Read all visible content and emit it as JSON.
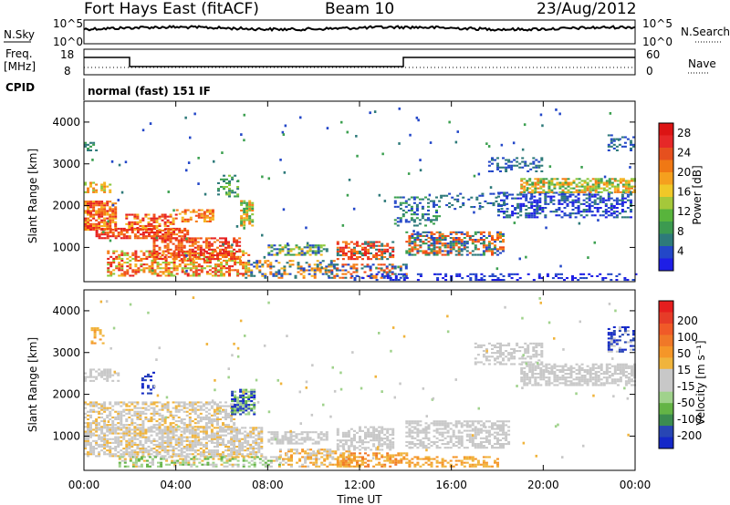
{
  "header": {
    "station": "Fort Hays East (fitACF)",
    "beam": "Beam 10",
    "date": "23/Aug/2012"
  },
  "strip_panels": {
    "nsky_label": "N.Sky",
    "nsearch_label": "N.Search",
    "nsky_ticks": [
      "10^5",
      "10^0"
    ],
    "nsky_right_ticks": [
      "10^5",
      "10^0"
    ],
    "freq_label_1": "Freq.",
    "freq_label_2": "[MHz]",
    "freq_ticks": [
      "18",
      "8"
    ],
    "nave_label": "Nave",
    "nave_ticks": [
      "60",
      "0"
    ],
    "cpid_label": "CPID",
    "cpid_text": "normal (fast) 151 IF"
  },
  "chart_data": [
    {
      "type": "heatmap",
      "panel": "power",
      "ylabel": "Slant Range [km]",
      "xlabel": "",
      "x_ticks": [
        "00:00",
        "04:00",
        "08:00",
        "12:00",
        "16:00",
        "20:00",
        "00:00"
      ],
      "y_ticks": [
        "1000",
        "2000",
        "3000",
        "4000"
      ],
      "xlim_hours": [
        0,
        24
      ],
      "ylim_km": [
        180,
        4500
      ],
      "colorbar": {
        "label": "Power [dB]",
        "ticks": [
          "4",
          "8",
          "12",
          "16",
          "20",
          "24",
          "28"
        ],
        "colors": [
          "#1e1ee6",
          "#2347c8",
          "#2e7a7a",
          "#3c9a50",
          "#58b43c",
          "#a5c83a",
          "#f0c828",
          "#f5a01e",
          "#f07814",
          "#e6501e",
          "#e62828",
          "#dc1414"
        ],
        "range": [
          0,
          30
        ]
      }
    },
    {
      "type": "heatmap",
      "panel": "velocity",
      "ylabel": "Slant Range [km]",
      "xlabel": "Time UT",
      "x_ticks": [
        "00:00",
        "04:00",
        "08:00",
        "12:00",
        "16:00",
        "20:00",
        "00:00"
      ],
      "y_ticks": [
        "1000",
        "2000",
        "3000",
        "4000"
      ],
      "xlim_hours": [
        0,
        24
      ],
      "ylim_km": [
        180,
        4500
      ],
      "colorbar": {
        "label": "Velocity [m s⁻¹]",
        "ticks": [
          "200",
          "100",
          "50",
          "15",
          "-15",
          "-50",
          "-100",
          "-200"
        ],
        "colors": [
          "#1428c8",
          "#2846b4",
          "#3c8c50",
          "#64b446",
          "#a0d28c",
          "#c8c8c8",
          "#c8c8c8",
          "#f0b43c",
          "#f59628",
          "#f07828",
          "#f05a28",
          "#e63c28",
          "#e61e1e"
        ]
      }
    }
  ]
}
